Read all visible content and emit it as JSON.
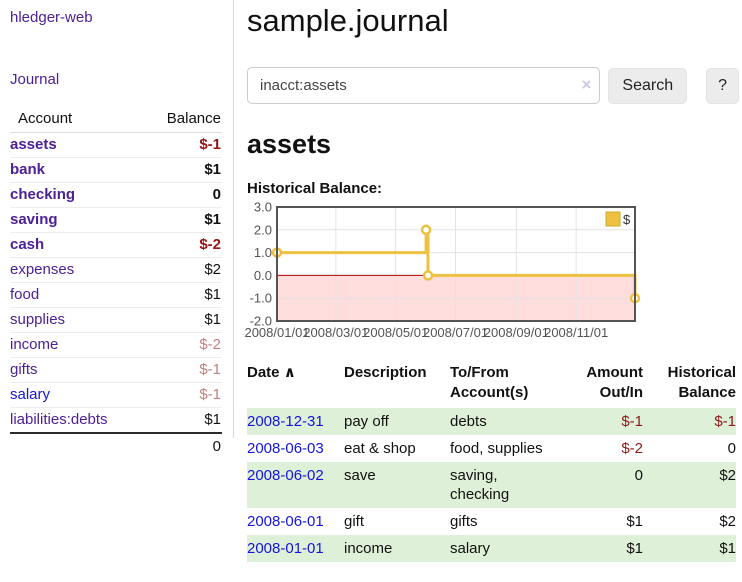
{
  "app": {
    "brand": "hledger-web"
  },
  "colors": {
    "accent_purple": "#4e2096",
    "link_blue": "#1515dd",
    "negative_red": "#941414",
    "negative_muted": "#c38080",
    "register_negative": "#8b1a1a",
    "stripe_green": "#dff0d8",
    "chart_gold": "#EDC240"
  },
  "sidebar": {
    "journal_link": "Journal",
    "accounts_table": {
      "headers": {
        "account": "Account",
        "balance": "Balance"
      },
      "rows": [
        {
          "name": "assets",
          "level": 1,
          "bold": true,
          "balance": "$-1",
          "balance_style": "neg-strong"
        },
        {
          "name": "bank",
          "level": 2,
          "bold": true,
          "balance": "$1",
          "balance_style": ""
        },
        {
          "name": "checking",
          "level": 3,
          "bold": true,
          "balance": "0",
          "balance_style": ""
        },
        {
          "name": "saving",
          "level": 3,
          "bold": true,
          "balance": "$1",
          "balance_style": ""
        },
        {
          "name": "cash",
          "level": 2,
          "bold": true,
          "balance": "$-2",
          "balance_style": "neg-strong"
        },
        {
          "name": "expenses",
          "level": 1,
          "bold": false,
          "balance": "$2",
          "balance_style": ""
        },
        {
          "name": "food",
          "level": 2,
          "bold": false,
          "balance": "$1",
          "balance_style": ""
        },
        {
          "name": "supplies",
          "level": 2,
          "bold": false,
          "balance": "$1",
          "balance_style": ""
        },
        {
          "name": "income",
          "level": 1,
          "bold": false,
          "balance": "$-2",
          "balance_style": "neg-muted"
        },
        {
          "name": "gifts",
          "level": 2,
          "bold": false,
          "balance": "$-1",
          "balance_style": "neg-muted"
        },
        {
          "name": "salary",
          "level": 2,
          "bold": false,
          "balance": "$-1",
          "balance_style": "neg-muted",
          "link_style": "unvisited"
        },
        {
          "name": "liabilities:debts",
          "level": 1,
          "bold": false,
          "balance": "$1",
          "balance_style": ""
        }
      ],
      "total": "0"
    }
  },
  "header": {
    "title": "sample.journal"
  },
  "search": {
    "value": "inacct:assets",
    "clear_icon": "×",
    "button_label": "Search",
    "help_label": "?"
  },
  "account_page": {
    "heading": "assets",
    "chart_label": "Historical Balance:"
  },
  "chart_data": {
    "type": "line",
    "title": "Historical Balance",
    "xlabel": "",
    "ylabel": "",
    "legend": {
      "label": "$",
      "position": "top-right"
    },
    "series": [
      {
        "name": "$",
        "color": "#EDC240",
        "points": [
          {
            "date": "2008-01-01",
            "value": 1
          },
          {
            "date": "2008-06-01",
            "value": 2
          },
          {
            "date": "2008-06-02",
            "value": 2
          },
          {
            "date": "2008-06-03",
            "value": 0
          },
          {
            "date": "2008-12-31",
            "value": -1
          }
        ],
        "step_path_days": [
          [
            0,
            1
          ],
          [
            152,
            1
          ],
          [
            152,
            2
          ],
          [
            154,
            2
          ],
          [
            154,
            0
          ],
          [
            365,
            0
          ],
          [
            365,
            -1
          ]
        ],
        "marker_days": [
          [
            0,
            1
          ],
          [
            152,
            2
          ],
          [
            154,
            0
          ],
          [
            365,
            -1
          ]
        ]
      }
    ],
    "yticks": [
      {
        "label": "3.0",
        "value": 3
      },
      {
        "label": "2.0",
        "value": 2
      },
      {
        "label": "1.0",
        "value": 1
      },
      {
        "label": "0.0",
        "value": 0
      },
      {
        "label": "-1.0",
        "value": -1
      },
      {
        "label": "-2.0",
        "value": -2
      }
    ],
    "xticks": [
      {
        "label": "2008/01/01",
        "day": 0
      },
      {
        "label": "2008/03/01",
        "day": 60
      },
      {
        "label": "2008/05/01",
        "day": 121
      },
      {
        "label": "2008/07/01",
        "day": 182
      },
      {
        "label": "2008/09/01",
        "day": 244
      },
      {
        "label": "2008/11/01",
        "day": 305
      }
    ],
    "ylim": [
      -2,
      3
    ],
    "xlim_days": [
      0,
      365
    ],
    "grid": true,
    "negative_region_color": "#ffdddd",
    "zero_line_color": "#aa0000",
    "border_color": "#545454",
    "grid_color": "#e3e3e3",
    "tick_label_color": "#545454"
  },
  "register": {
    "headers": [
      {
        "label": "Date"
      },
      {
        "label": "Description"
      },
      {
        "label": "To/From Account(s)"
      },
      {
        "label": "Amount Out/In"
      },
      {
        "label": "Historical Balance"
      }
    ],
    "sort_indicator": "∧",
    "rows": [
      {
        "date": "2008-12-31",
        "description": "pay off",
        "accounts": "debts",
        "amount": "$-1",
        "amount_style": "neg",
        "balance": "$-1",
        "balance_style": "neg",
        "striped": true
      },
      {
        "date": "2008-06-03",
        "description": "eat & shop",
        "accounts": "food, supplies",
        "amount": "$-2",
        "amount_style": "neg",
        "balance": "0",
        "balance_style": "",
        "striped": false
      },
      {
        "date": "2008-06-02",
        "description": "save",
        "accounts": "saving, checking",
        "amount": "0",
        "amount_style": "",
        "balance": "$2",
        "balance_style": "",
        "striped": true
      },
      {
        "date": "2008-06-01",
        "description": "gift",
        "accounts": "gifts",
        "amount": "$1",
        "amount_style": "",
        "balance": "$2",
        "balance_style": "",
        "striped": false
      },
      {
        "date": "2008-01-01",
        "description": "income",
        "accounts": "salary",
        "amount": "$1",
        "amount_style": "",
        "balance": "$1",
        "balance_style": "",
        "striped": true
      }
    ]
  }
}
